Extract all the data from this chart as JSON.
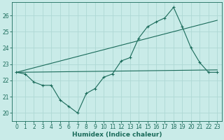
{
  "xlabel": "Humidex (Indice chaleur)",
  "xlim": [
    -0.5,
    23.5
  ],
  "ylim": [
    19.5,
    26.8
  ],
  "yticks": [
    20,
    21,
    22,
    23,
    24,
    25,
    26
  ],
  "xticks": [
    0,
    1,
    2,
    3,
    4,
    5,
    6,
    7,
    8,
    9,
    10,
    11,
    12,
    13,
    14,
    15,
    16,
    17,
    18,
    19,
    20,
    21,
    22,
    23
  ],
  "bg_color": "#c9ebe8",
  "grid_color": "#aed8d4",
  "line_color": "#1a6b5a",
  "line1_x": [
    0,
    1,
    2,
    3,
    4,
    5,
    6,
    7,
    8,
    9,
    10,
    11,
    12,
    13,
    14,
    15,
    16,
    17,
    18,
    19,
    20,
    21,
    22,
    23
  ],
  "line1_y": [
    22.5,
    22.4,
    21.9,
    21.7,
    21.7,
    20.8,
    20.4,
    20.0,
    21.2,
    21.5,
    22.2,
    22.4,
    23.2,
    23.4,
    24.6,
    25.3,
    25.6,
    25.85,
    26.5,
    25.3,
    24.0,
    23.1,
    22.5,
    22.5
  ],
  "line2_x": [
    0,
    23
  ],
  "line2_y": [
    22.5,
    25.7
  ],
  "line3_x": [
    0,
    23
  ],
  "line3_y": [
    22.5,
    22.65
  ],
  "markers_x": [
    0,
    1,
    2,
    3,
    4,
    5,
    6,
    7,
    8,
    9,
    10,
    11,
    12,
    13,
    14,
    15,
    16,
    17,
    18,
    19,
    20,
    21,
    22,
    23
  ],
  "markers_y": [
    22.5,
    22.4,
    21.9,
    21.7,
    21.7,
    20.8,
    20.4,
    20.0,
    21.2,
    21.5,
    22.2,
    22.4,
    23.2,
    23.4,
    24.6,
    25.3,
    25.6,
    25.85,
    26.5,
    25.3,
    24.0,
    23.1,
    22.5,
    22.5
  ]
}
